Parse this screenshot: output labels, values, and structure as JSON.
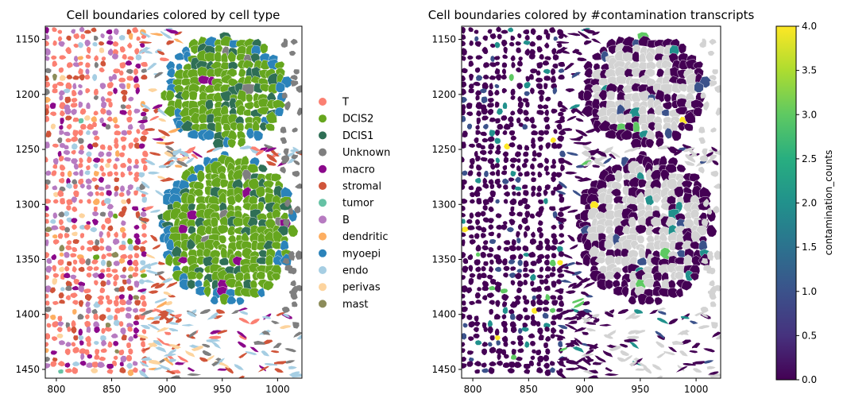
{
  "chart_data": [
    {
      "type": "scatter",
      "title": "Cell boundaries colored by cell type",
      "xlabel": "",
      "ylabel": "",
      "xlim": [
        790,
        1022
      ],
      "ylim": [
        1458,
        1138
      ],
      "y_inverted": true,
      "xticks": [
        "800",
        "850",
        "900",
        "950",
        "1000"
      ],
      "yticks": [
        "1150",
        "1200",
        "1250",
        "1300",
        "1350",
        "1400",
        "1450"
      ],
      "grid": false,
      "legend_position": "right",
      "legend": [
        {
          "label": "T",
          "color": "#fb8072"
        },
        {
          "label": "DCIS2",
          "color": "#66a61e"
        },
        {
          "label": "DCIS1",
          "color": "#2f6f55"
        },
        {
          "label": "Unknown",
          "color": "#7f7f7f"
        },
        {
          "label": "macro",
          "color": "#8b088b"
        },
        {
          "label": "stromal",
          "color": "#d0553a"
        },
        {
          "label": "tumor",
          "color": "#66c2a5"
        },
        {
          "label": "B",
          "color": "#b77bc1"
        },
        {
          "label": "dendritic",
          "color": "#fdae61"
        },
        {
          "label": "myoepi",
          "color": "#2b83ba"
        },
        {
          "label": "endo",
          "color": "#a6cee3"
        },
        {
          "label": "perivas",
          "color": "#fdd49e"
        },
        {
          "label": "mast",
          "color": "#8c8c5a"
        }
      ]
    },
    {
      "type": "scatter",
      "title": "Cell boundaries colored by #contamination transcripts",
      "xlabel": "",
      "ylabel": "",
      "xlim": [
        790,
        1022
      ],
      "ylim": [
        1458,
        1138
      ],
      "y_inverted": true,
      "xticks": [
        "800",
        "850",
        "900",
        "950",
        "1000"
      ],
      "yticks": [
        "1150",
        "1200",
        "1250",
        "1300",
        "1350",
        "1400",
        "1450"
      ],
      "grid": false,
      "colorbar": {
        "label": "contamination_counts",
        "range": [
          0.0,
          4.0
        ],
        "ticks": [
          "0.0",
          "0.5",
          "1.0",
          "1.5",
          "2.0",
          "2.5",
          "3.0",
          "3.5",
          "4.0"
        ],
        "colormap": "viridis",
        "missing_color": "#d3d3d3"
      }
    }
  ]
}
